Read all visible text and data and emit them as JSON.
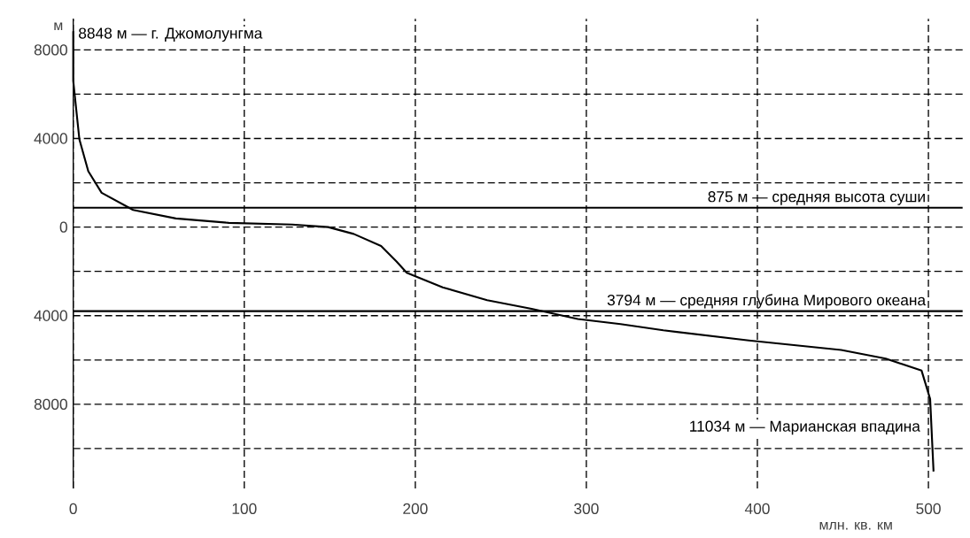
{
  "chart_data": {
    "type": "line",
    "xlabel": "млн. кв. км",
    "ylabel": "м",
    "xlim": [
      0,
      520
    ],
    "ylim": [
      -11800,
      9400
    ],
    "xticks": [
      0,
      100,
      200,
      300,
      400,
      500
    ],
    "yticks": [
      {
        "value": 8000,
        "label": "8000"
      },
      {
        "value": 6000,
        "label": null
      },
      {
        "value": 4000,
        "label": "4000"
      },
      {
        "value": 2000,
        "label": null
      },
      {
        "value": 0,
        "label": "0"
      },
      {
        "value": -2000,
        "label": null
      },
      {
        "value": -4000,
        "label": "4000"
      },
      {
        "value": -6000,
        "label": null
      },
      {
        "value": -8000,
        "label": "8000"
      },
      {
        "value": -10000,
        "label": null
      }
    ],
    "grid": true,
    "line_style": "solid",
    "marker": "none",
    "series": [
      {
        "color": "#000000",
        "x": [
          0,
          0,
          3.6,
          8.8,
          16.6,
          35,
          60,
          91,
          128,
          149,
          164,
          180,
          189,
          195,
          216,
          242,
          268,
          295,
          320,
          345,
          395,
          449,
          475,
          496,
          501,
          503
        ],
        "values": [
          8848,
          6600,
          3960,
          2520,
          1550,
          776,
          390,
          190,
          116,
          0,
          -310,
          -850,
          -1550,
          -2060,
          -2720,
          -3300,
          -3690,
          -4150,
          -4380,
          -4660,
          -5120,
          -5550,
          -5940,
          -6480,
          -7760,
          -11034
        ]
      }
    ],
    "ref_lines": [
      {
        "axis": "y",
        "value": 875,
        "label": "875 м — средняя высота суши",
        "color": "#000000"
      },
      {
        "axis": "y",
        "value": -3794,
        "label": "3794 м — средняя глубина Мирового океана",
        "color": "#000000"
      }
    ],
    "annotations": [
      {
        "text": "8848 м — г. Джомолунгма",
        "x": 0,
        "y": 8848
      },
      {
        "text": "11034 м — Марианская впадина",
        "x": 503,
        "y": -11034
      }
    ]
  }
}
